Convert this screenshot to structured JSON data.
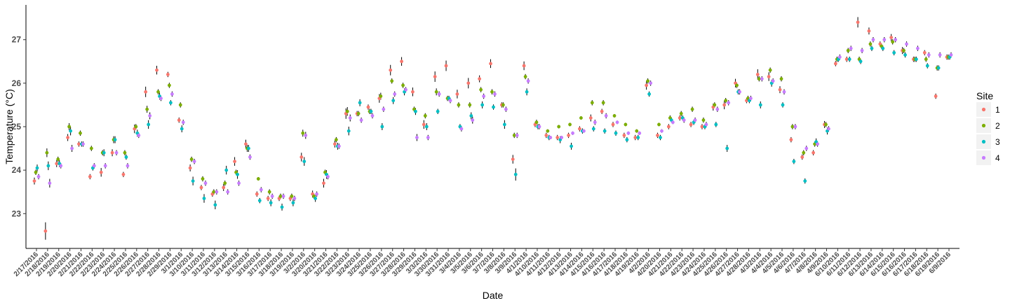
{
  "chart_data": {
    "type": "scatter",
    "subtype": "point with error bars",
    "xlabel": "Date",
    "ylabel": "Temperature (°C)",
    "ylim": [
      22.2,
      27.8
    ],
    "yticks": [
      23,
      24,
      25,
      26,
      27
    ],
    "grid": false,
    "legend": {
      "title": "Site",
      "placement": "right",
      "entries": [
        "1",
        "2",
        "3",
        "4"
      ]
    },
    "colors": {
      "1": "#F8766D",
      "2": "#7CAE00",
      "3": "#00BFC4",
      "4": "#C77CFF"
    },
    "categories": [
      "2/17/2016",
      "2/18/2016",
      "2/19/2016",
      "2/20/2016",
      "2/21/2016",
      "2/22/2016",
      "2/23/2016",
      "2/24/2016",
      "2/25/2016",
      "2/26/2016",
      "2/27/2016",
      "2/28/2016",
      "2/29/2016",
      "3/1/2016",
      "3/10/2016",
      "3/11/2016",
      "3/12/2016",
      "3/13/2016",
      "3/14/2016",
      "3/15/2016",
      "3/16/2016",
      "3/17/2016",
      "3/18/2016",
      "3/19/2016",
      "3/2/2016",
      "3/20/2016",
      "3/21/2016",
      "3/22/2016",
      "3/23/2016",
      "3/24/2016",
      "3/25/2016",
      "3/26/2016",
      "3/27/2016",
      "3/28/2016",
      "3/29/2016",
      "3/3/2016",
      "3/30/2016",
      "3/31/2016",
      "3/4/2016",
      "3/5/2016",
      "3/6/2016",
      "3/7/2016",
      "3/8/2016",
      "3/9/2016",
      "4/1/2016",
      "4/10/2016",
      "4/11/2016",
      "4/12/2016",
      "4/13/2016",
      "4/14/2016",
      "4/15/2016",
      "4/16/2016",
      "4/17/2016",
      "4/18/2016",
      "4/19/2016",
      "4/2/2016",
      "4/20/2016",
      "4/21/2016",
      "4/22/2016",
      "4/23/2016",
      "4/24/2016",
      "4/25/2016",
      "4/26/2016",
      "4/27/2016",
      "4/28/2016",
      "4/3/2016",
      "4/4/2016",
      "4/5/2016",
      "4/6/2016",
      "4/7/2016",
      "4/8/2016",
      "4/9/2016",
      "6/10/2016",
      "6/11/2016",
      "6/12/2016",
      "6/13/2016",
      "6/14/2016",
      "6/15/2016",
      "6/16/2016",
      "6/17/2016",
      "6/18/2016",
      "6/19/2016",
      "6/9/2016"
    ],
    "series": [
      {
        "name": "1",
        "values": [
          23.75,
          22.6,
          24.15,
          24.75,
          24.6,
          23.85,
          23.95,
          24.4,
          23.9,
          24.95,
          25.8,
          26.3,
          26.2,
          25.15,
          24.05,
          23.6,
          23.45,
          23.6,
          24.2,
          24.6,
          23.45,
          23.35,
          23.35,
          23.35,
          24.3,
          23.45,
          23.7,
          24.6,
          25.3,
          25.3,
          25.45,
          25.65,
          26.3,
          26.5,
          25.8,
          25.05,
          26.15,
          26.4,
          25.75,
          26.0,
          26.1,
          26.45,
          25.5,
          24.25,
          26.4,
          25.05,
          24.8,
          24.75,
          24.8,
          24.95,
          25.2,
          25.35,
          25.05,
          24.8,
          24.75,
          25.95,
          24.8,
          25.0,
          25.2,
          25.05,
          25.0,
          25.45,
          25.5,
          26.0,
          25.6,
          26.2,
          26.15,
          25.85,
          24.7,
          24.3,
          24.4,
          25.05,
          26.45,
          26.55,
          27.4,
          27.2,
          26.9,
          27.05,
          26.75,
          26.55,
          26.7,
          25.7,
          26.6
        ],
        "errors": [
          0.08,
          0.2,
          0.08,
          0.08,
          0.06,
          0.06,
          0.1,
          0.08,
          0.06,
          0.1,
          0.12,
          0.1,
          0.06,
          0.06,
          0.08,
          0.06,
          0.06,
          0.08,
          0.1,
          0.1,
          0.06,
          0.06,
          0.06,
          0.06,
          0.1,
          0.08,
          0.1,
          0.08,
          0.12,
          0.06,
          0.06,
          0.1,
          0.12,
          0.1,
          0.1,
          0.1,
          0.12,
          0.12,
          0.1,
          0.12,
          0.08,
          0.1,
          0.06,
          0.1,
          0.1,
          0.06,
          0.06,
          0.06,
          0.06,
          0.06,
          0.08,
          0.06,
          0.06,
          0.06,
          0.06,
          0.1,
          0.06,
          0.06,
          0.06,
          0.06,
          0.06,
          0.08,
          0.1,
          0.1,
          0.06,
          0.12,
          0.1,
          0.08,
          0.06,
          0.06,
          0.06,
          0.08,
          0.06,
          0.06,
          0.12,
          0.08,
          0.06,
          0.08,
          0.08,
          0.06,
          0.06,
          0.06,
          0.06
        ]
      },
      {
        "name": "2",
        "values": [
          23.95,
          24.4,
          24.25,
          25.0,
          24.85,
          24.5,
          24.4,
          24.7,
          24.4,
          25.0,
          25.4,
          25.8,
          25.95,
          25.5,
          24.25,
          23.8,
          23.5,
          23.7,
          23.95,
          24.5,
          23.8,
          23.5,
          23.4,
          23.4,
          24.85,
          23.4,
          23.95,
          24.7,
          25.35,
          25.3,
          25.35,
          25.7,
          26.05,
          25.95,
          25.4,
          25.25,
          25.8,
          25.65,
          25.5,
          25.5,
          25.85,
          25.8,
          25.5,
          24.8,
          26.15,
          25.1,
          24.9,
          25.0,
          25.05,
          25.2,
          25.55,
          25.55,
          25.25,
          25.05,
          24.9,
          26.05,
          25.05,
          25.2,
          25.3,
          25.4,
          25.15,
          25.5,
          25.6,
          25.95,
          25.65,
          26.1,
          26.3,
          26.1,
          25.0,
          24.4,
          24.6,
          25.05,
          26.55,
          26.75,
          26.55,
          26.9,
          26.85,
          26.95,
          26.75,
          26.55,
          26.55,
          26.35,
          26.6
        ],
        "errors": [
          0.06,
          0.1,
          0.06,
          0.08,
          0.06,
          0.06,
          0.06,
          0.08,
          0.06,
          0.06,
          0.08,
          0.06,
          0.06,
          0.06,
          0.06,
          0.06,
          0.06,
          0.06,
          0.06,
          0.08,
          0.04,
          0.06,
          0.06,
          0.06,
          0.08,
          0.06,
          0.06,
          0.06,
          0.1,
          0.06,
          0.06,
          0.08,
          0.06,
          0.06,
          0.06,
          0.06,
          0.08,
          0.06,
          0.06,
          0.06,
          0.06,
          0.06,
          0.06,
          0.06,
          0.06,
          0.06,
          0.04,
          0.04,
          0.04,
          0.04,
          0.06,
          0.06,
          0.04,
          0.04,
          0.04,
          0.06,
          0.04,
          0.06,
          0.06,
          0.06,
          0.06,
          0.06,
          0.06,
          0.06,
          0.06,
          0.06,
          0.06,
          0.06,
          0.06,
          0.06,
          0.06,
          0.06,
          0.06,
          0.06,
          0.06,
          0.06,
          0.06,
          0.06,
          0.06,
          0.06,
          0.06,
          0.06,
          0.06
        ]
      },
      {
        "name": "3",
        "values": [
          24.05,
          24.1,
          24.15,
          24.9,
          24.6,
          24.05,
          24.4,
          24.7,
          24.3,
          24.85,
          25.05,
          25.7,
          25.55,
          24.95,
          23.75,
          23.35,
          23.2,
          24.0,
          23.9,
          24.5,
          23.3,
          23.25,
          23.15,
          23.25,
          24.2,
          23.35,
          23.9,
          24.55,
          24.9,
          25.55,
          25.35,
          25.0,
          25.6,
          25.8,
          25.35,
          25.0,
          25.35,
          25.65,
          25.0,
          25.25,
          25.5,
          25.45,
          25.05,
          23.9,
          25.8,
          25.0,
          24.75,
          24.7,
          24.55,
          24.9,
          24.95,
          24.9,
          24.85,
          24.7,
          24.75,
          25.75,
          24.75,
          25.15,
          25.2,
          25.1,
          25.0,
          25.05,
          24.5,
          25.8,
          25.6,
          25.5,
          26.0,
          25.5,
          24.2,
          23.75,
          24.65,
          24.9,
          26.55,
          26.55,
          26.5,
          26.8,
          26.8,
          26.7,
          26.65,
          26.55,
          26.4,
          26.35,
          26.6
        ],
        "errors": [
          0.08,
          0.1,
          0.08,
          0.1,
          0.06,
          0.06,
          0.08,
          0.08,
          0.06,
          0.08,
          0.1,
          0.08,
          0.06,
          0.08,
          0.1,
          0.1,
          0.1,
          0.1,
          0.1,
          0.08,
          0.06,
          0.08,
          0.08,
          0.08,
          0.1,
          0.08,
          0.1,
          0.08,
          0.1,
          0.08,
          0.06,
          0.08,
          0.08,
          0.08,
          0.08,
          0.08,
          0.06,
          0.06,
          0.06,
          0.08,
          0.08,
          0.06,
          0.1,
          0.14,
          0.08,
          0.06,
          0.06,
          0.08,
          0.08,
          0.06,
          0.06,
          0.06,
          0.06,
          0.06,
          0.06,
          0.06,
          0.06,
          0.06,
          0.06,
          0.06,
          0.06,
          0.06,
          0.08,
          0.06,
          0.06,
          0.08,
          0.08,
          0.06,
          0.06,
          0.06,
          0.08,
          0.08,
          0.06,
          0.06,
          0.06,
          0.06,
          0.06,
          0.06,
          0.06,
          0.06,
          0.06,
          0.06,
          0.06
        ]
      },
      {
        "name": "4",
        "values": [
          23.85,
          23.7,
          24.1,
          24.5,
          24.6,
          24.1,
          24.1,
          24.4,
          24.1,
          24.8,
          25.25,
          25.65,
          25.75,
          25.1,
          24.2,
          23.7,
          23.5,
          23.5,
          23.7,
          24.3,
          23.55,
          23.4,
          23.4,
          23.35,
          24.8,
          23.45,
          23.85,
          24.55,
          25.2,
          25.15,
          25.25,
          25.4,
          25.75,
          25.85,
          24.75,
          24.75,
          25.75,
          25.6,
          24.95,
          25.15,
          25.7,
          25.75,
          25.4,
          24.8,
          26.05,
          25.0,
          24.75,
          24.75,
          24.85,
          24.9,
          25.1,
          25.25,
          25.1,
          24.85,
          24.85,
          26.0,
          24.9,
          25.1,
          25.15,
          25.15,
          25.05,
          25.4,
          25.55,
          25.8,
          25.65,
          26.1,
          26.05,
          25.8,
          25.0,
          24.5,
          24.6,
          24.95,
          26.6,
          26.8,
          26.75,
          27.0,
          27.0,
          27.0,
          26.9,
          26.8,
          26.65,
          26.65,
          26.65
        ],
        "errors": [
          0.06,
          0.1,
          0.06,
          0.08,
          0.06,
          0.06,
          0.06,
          0.06,
          0.06,
          0.06,
          0.08,
          0.06,
          0.06,
          0.06,
          0.06,
          0.06,
          0.06,
          0.06,
          0.06,
          0.06,
          0.06,
          0.06,
          0.06,
          0.06,
          0.08,
          0.06,
          0.06,
          0.06,
          0.08,
          0.06,
          0.06,
          0.06,
          0.06,
          0.06,
          0.08,
          0.06,
          0.06,
          0.06,
          0.06,
          0.08,
          0.06,
          0.06,
          0.06,
          0.06,
          0.06,
          0.06,
          0.04,
          0.04,
          0.04,
          0.04,
          0.06,
          0.06,
          0.04,
          0.04,
          0.04,
          0.06,
          0.04,
          0.04,
          0.06,
          0.06,
          0.06,
          0.06,
          0.06,
          0.06,
          0.06,
          0.06,
          0.06,
          0.06,
          0.06,
          0.06,
          0.06,
          0.06,
          0.06,
          0.06,
          0.06,
          0.06,
          0.06,
          0.06,
          0.06,
          0.06,
          0.06,
          0.06,
          0.06
        ]
      }
    ]
  }
}
